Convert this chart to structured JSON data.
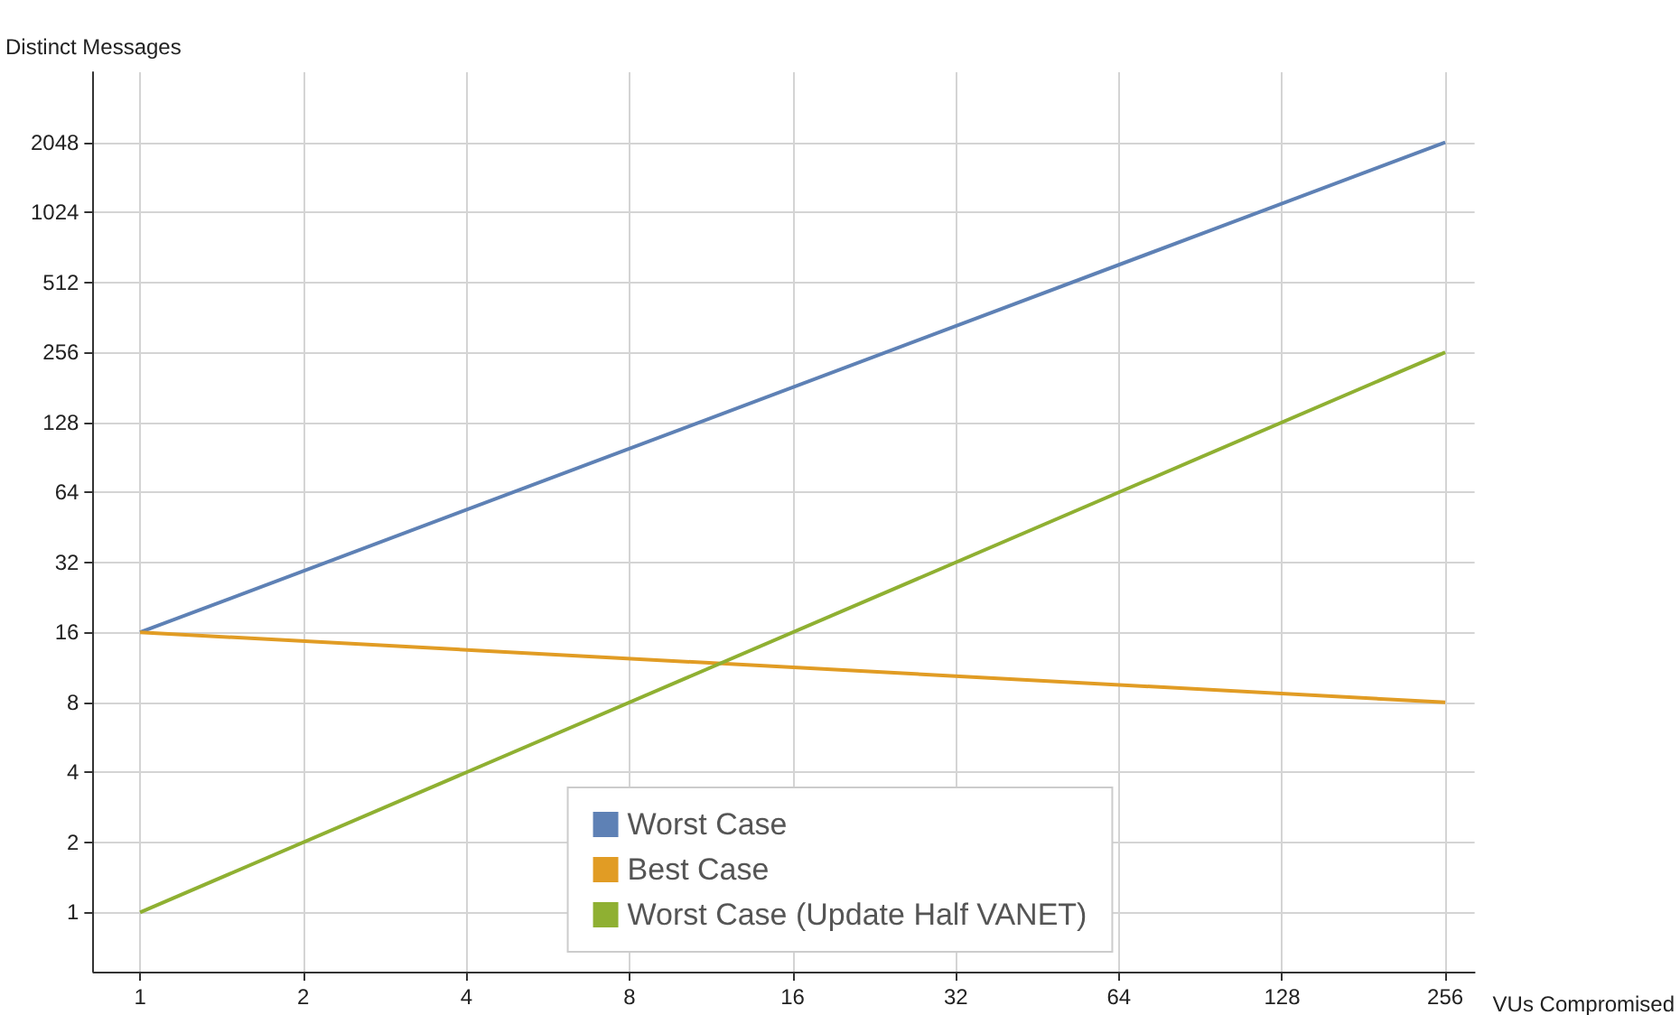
{
  "chart_data": {
    "type": "line",
    "xlabel": "VUs Compromised",
    "ylabel": "Distinct Messages",
    "log": "xy",
    "x": [
      1,
      256
    ],
    "series": [
      {
        "name": "Worst Case",
        "color": "#5e81b5",
        "values": [
          16,
          2048
        ]
      },
      {
        "name": "Best Case",
        "color": "#e19c24",
        "values": [
          16,
          8
        ]
      },
      {
        "name": "Worst Case (Update Half VANET)",
        "color": "#8fb032",
        "values": [
          1,
          256
        ]
      }
    ],
    "xlim": [
      0.82,
      290
    ],
    "xticks": [
      1,
      2,
      4,
      8,
      16,
      32,
      64,
      128,
      256
    ],
    "ylim": [
      0.556,
      4096
    ],
    "yticks": [
      1,
      2,
      4,
      8,
      16,
      32,
      64,
      128,
      256,
      512,
      1024,
      2048
    ],
    "grid": true,
    "legend": "bottom",
    "marker": "none",
    "line_style": "solid"
  }
}
